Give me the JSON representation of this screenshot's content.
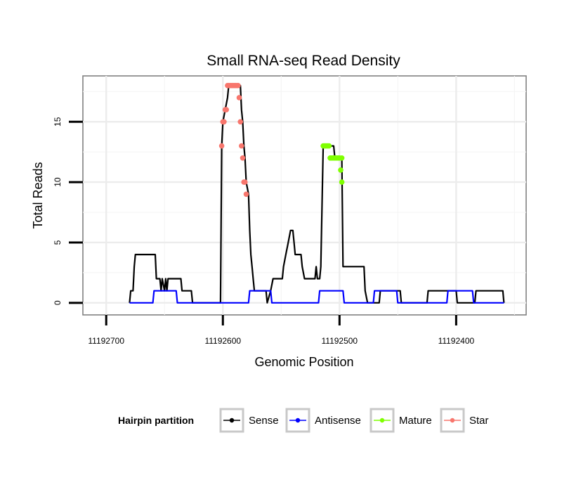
{
  "chart_data": {
    "type": "line",
    "title": "Small RNA-seq Read Density",
    "xlabel": "Genomic Position",
    "ylabel": "Total Reads",
    "xlim": [
      11192720,
      11192340
    ],
    "ylim": [
      -1,
      18.8
    ],
    "x_reversed": true,
    "x_ticks": [
      11192700,
      11192600,
      11192500,
      11192400
    ],
    "x_tick_labels": [
      "11192700",
      "11192600",
      "11192500",
      "11192400"
    ],
    "y_ticks": [
      0,
      5,
      10,
      15
    ],
    "y_tick_labels": [
      "0",
      "5",
      "10",
      "15"
    ],
    "grid": true,
    "legend": {
      "title": "Hairpin partition",
      "position": "bottom",
      "entries": [
        {
          "name": "Sense",
          "color": "#000000"
        },
        {
          "name": "Antisense",
          "color": "#0000ff"
        },
        {
          "name": "Mature",
          "color": "#7fff00"
        },
        {
          "name": "Star",
          "color": "#f8766d"
        }
      ]
    },
    "series": [
      {
        "name": "Sense",
        "color": "#000000",
        "points": [
          [
            11192680,
            0
          ],
          [
            11192679,
            1
          ],
          [
            11192677,
            1
          ],
          [
            11192676,
            3
          ],
          [
            11192675,
            4
          ],
          [
            11192658,
            4
          ],
          [
            11192657,
            2
          ],
          [
            11192654,
            2
          ],
          [
            11192653,
            1
          ],
          [
            11192652,
            2
          ],
          [
            11192650,
            1
          ],
          [
            11192649,
            2
          ],
          [
            11192648,
            1
          ],
          [
            11192647,
            2
          ],
          [
            11192636,
            2
          ],
          [
            11192635,
            1
          ],
          [
            11192627,
            1
          ],
          [
            11192626,
            0
          ],
          [
            11192602,
            0
          ],
          [
            11192601,
            13
          ],
          [
            11192600,
            15
          ],
          [
            11192598,
            16
          ],
          [
            11192596,
            17
          ],
          [
            11192595,
            18
          ],
          [
            11192585,
            18
          ],
          [
            11192584,
            16
          ],
          [
            11192583,
            15
          ],
          [
            11192582,
            13
          ],
          [
            11192581,
            12
          ],
          [
            11192580,
            10
          ],
          [
            11192578,
            9
          ],
          [
            11192577,
            6
          ],
          [
            11192576,
            4
          ],
          [
            11192575,
            3
          ],
          [
            11192574,
            2
          ],
          [
            11192573,
            1
          ],
          [
            11192563,
            1
          ],
          [
            11192562,
            0
          ],
          [
            11192559,
            1
          ],
          [
            11192557,
            2
          ],
          [
            11192549,
            2
          ],
          [
            11192548,
            3
          ],
          [
            11192546,
            4
          ],
          [
            11192544,
            5
          ],
          [
            11192542,
            6
          ],
          [
            11192540,
            6
          ],
          [
            11192539,
            5
          ],
          [
            11192538,
            4
          ],
          [
            11192533,
            4
          ],
          [
            11192532,
            3
          ],
          [
            11192530,
            2
          ],
          [
            11192521,
            2
          ],
          [
            11192520,
            3
          ],
          [
            11192519,
            2
          ],
          [
            11192517,
            2
          ],
          [
            11192516,
            3
          ],
          [
            11192515,
            8
          ],
          [
            11192514,
            13
          ],
          [
            11192505,
            13
          ],
          [
            11192504,
            12
          ],
          [
            11192498,
            12
          ],
          [
            11192497,
            3
          ],
          [
            11192479,
            3
          ],
          [
            11192478,
            1
          ],
          [
            11192476,
            0
          ],
          [
            11192466,
            0
          ],
          [
            11192465,
            1
          ],
          [
            11192448,
            1
          ],
          [
            11192447,
            0
          ],
          [
            11192425,
            0
          ],
          [
            11192424,
            1
          ],
          [
            11192400,
            1
          ],
          [
            11192399,
            0
          ],
          [
            11192384,
            0
          ],
          [
            11192383,
            1
          ],
          [
            11192360,
            1
          ],
          [
            11192359,
            0
          ]
        ]
      },
      {
        "name": "Antisense",
        "color": "#0000ff",
        "points": [
          [
            11192680,
            0
          ],
          [
            11192660,
            0
          ],
          [
            11192659,
            1
          ],
          [
            11192640,
            1
          ],
          [
            11192639,
            0
          ],
          [
            11192599,
            0
          ],
          [
            11192598,
            0
          ],
          [
            11192578,
            0
          ],
          [
            11192577,
            1
          ],
          [
            11192559,
            1
          ],
          [
            11192558,
            0
          ],
          [
            11192518,
            0
          ],
          [
            11192517,
            1
          ],
          [
            11192497,
            1
          ],
          [
            11192496,
            0
          ],
          [
            11192471,
            0
          ],
          [
            11192470,
            1
          ],
          [
            11192451,
            1
          ],
          [
            11192450,
            0
          ],
          [
            11192408,
            0
          ],
          [
            11192407,
            1
          ],
          [
            11192386,
            1
          ],
          [
            11192385,
            0
          ],
          [
            11192359,
            0
          ]
        ]
      },
      {
        "name": "Mature",
        "color": "#7fff00",
        "points": [
          [
            11192514,
            13
          ],
          [
            11192513,
            13
          ],
          [
            11192512,
            13
          ],
          [
            11192511,
            13
          ],
          [
            11192510,
            13
          ],
          [
            11192509,
            13
          ],
          [
            11192508,
            12
          ],
          [
            11192507,
            12
          ],
          [
            11192506,
            12
          ],
          [
            11192505,
            12
          ],
          [
            11192504,
            12
          ],
          [
            11192503,
            12
          ],
          [
            11192502,
            12
          ],
          [
            11192501,
            12
          ],
          [
            11192500,
            12
          ],
          [
            11192499,
            11
          ],
          [
            11192498,
            10
          ],
          [
            11192498,
            12
          ]
        ]
      },
      {
        "name": "Star",
        "color": "#f8766d",
        "points": [
          [
            11192601,
            13
          ],
          [
            11192600,
            15
          ],
          [
            11192599,
            15
          ],
          [
            11192598,
            16
          ],
          [
            11192597,
            16
          ],
          [
            11192596,
            18
          ],
          [
            11192595,
            18
          ],
          [
            11192594,
            18
          ],
          [
            11192593,
            18
          ],
          [
            11192592,
            18
          ],
          [
            11192591,
            18
          ],
          [
            11192590,
            18
          ],
          [
            11192589,
            18
          ],
          [
            11192588,
            18
          ],
          [
            11192587,
            18
          ],
          [
            11192586,
            17
          ],
          [
            11192585,
            15
          ],
          [
            11192584,
            13
          ],
          [
            11192583,
            12
          ],
          [
            11192582,
            10
          ],
          [
            11192581,
            10
          ],
          [
            11192580,
            9
          ]
        ]
      }
    ]
  }
}
